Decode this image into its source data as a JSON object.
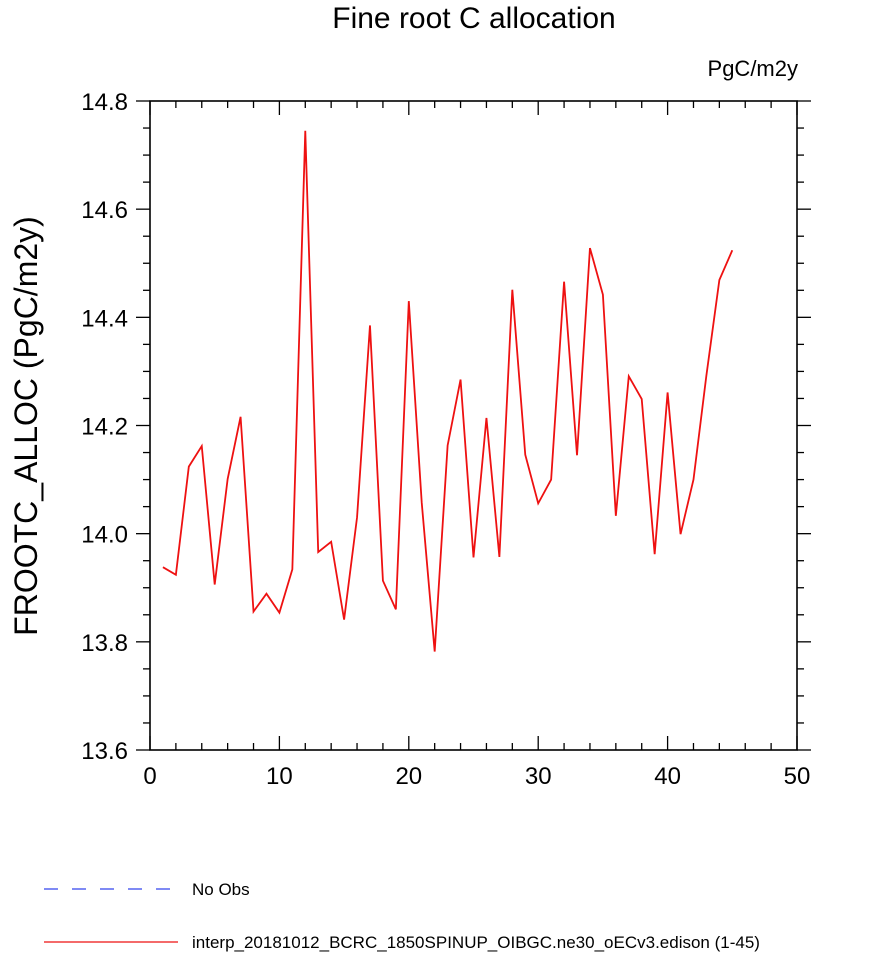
{
  "chart_data": {
    "type": "line",
    "title": "Fine root C allocation",
    "units": "PgC/m2y",
    "ylabel": "FROOTC_ALLOC  (PgC/m2y)",
    "xlabel": "",
    "xlim": [
      0,
      50
    ],
    "ylim": [
      13.6,
      14.8
    ],
    "xticks": [
      "0",
      "10",
      "20",
      "30",
      "40",
      "50"
    ],
    "yticks": [
      "13.6",
      "13.8",
      "14.0",
      "14.2",
      "14.4",
      "14.6",
      "14.8"
    ],
    "grid": false,
    "legend_position": "bottom-left",
    "series": [
      {
        "name": "No Obs",
        "color": "#3344ee",
        "style": "dashed",
        "x": [],
        "values": []
      },
      {
        "name": "interp_20181012_BCRC_1850SPINUP_OIBGC.ne30_oECv3.edison (1-45)",
        "color": "#ee1111",
        "style": "solid",
        "x": [
          1,
          2,
          3,
          4,
          5,
          6,
          7,
          8,
          9,
          10,
          11,
          12,
          13,
          14,
          15,
          16,
          17,
          18,
          19,
          20,
          21,
          22,
          23,
          24,
          25,
          26,
          27,
          28,
          29,
          30,
          31,
          32,
          33,
          34,
          35,
          36,
          37,
          38,
          39,
          40,
          41,
          42,
          43,
          44,
          45
        ],
        "values": [
          13.938,
          13.924,
          14.124,
          14.162,
          13.906,
          14.101,
          14.216,
          13.856,
          13.889,
          13.854,
          13.934,
          14.745,
          13.966,
          13.985,
          13.841,
          14.03,
          14.385,
          13.913,
          13.86,
          14.43,
          14.057,
          13.782,
          14.163,
          14.285,
          13.956,
          14.214,
          13.957,
          14.451,
          14.146,
          14.056,
          14.1,
          14.466,
          14.145,
          14.528,
          14.442,
          14.033,
          14.291,
          14.249,
          13.962,
          14.261,
          13.999,
          14.1,
          14.293,
          14.469,
          14.524
        ]
      }
    ]
  }
}
